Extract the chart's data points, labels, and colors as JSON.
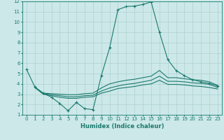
{
  "xlabel": "Humidex (Indice chaleur)",
  "bg_color": "#cce8e8",
  "grid_color": "#b0d0d0",
  "line_color": "#1a7a6e",
  "xlim": [
    -0.5,
    23.5
  ],
  "ylim": [
    1,
    12
  ],
  "xticks": [
    0,
    1,
    2,
    3,
    4,
    5,
    6,
    7,
    8,
    9,
    10,
    11,
    12,
    13,
    14,
    15,
    16,
    17,
    18,
    19,
    20,
    21,
    22,
    23
  ],
  "yticks": [
    1,
    2,
    3,
    4,
    5,
    6,
    7,
    8,
    9,
    10,
    11,
    12
  ],
  "curves": {
    "main": {
      "x": [
        0,
        1,
        2,
        3,
        4,
        5,
        6,
        7,
        8,
        9,
        10,
        11,
        12,
        13,
        14,
        15,
        16,
        17,
        18,
        19,
        20,
        21,
        22,
        23
      ],
      "y": [
        5.4,
        3.7,
        3.1,
        2.7,
        2.1,
        1.4,
        2.2,
        1.6,
        1.5,
        4.8,
        7.5,
        11.2,
        11.5,
        11.55,
        11.7,
        11.95,
        9.0,
        6.35,
        5.3,
        4.8,
        4.4,
        4.2,
        4.05,
        3.8
      ],
      "has_marker": true
    },
    "band1": {
      "x": [
        1,
        2,
        3,
        4,
        5,
        6,
        7,
        8,
        9,
        10,
        11,
        12,
        13,
        14,
        15,
        16,
        17,
        18,
        19,
        20,
        21,
        22,
        23
      ],
      "y": [
        3.65,
        3.1,
        3.05,
        3.0,
        2.95,
        2.95,
        3.05,
        3.1,
        3.6,
        4.0,
        4.2,
        4.35,
        4.45,
        4.6,
        4.75,
        5.3,
        4.6,
        4.6,
        4.5,
        4.4,
        4.35,
        4.2,
        3.85
      ],
      "has_marker": false
    },
    "band2": {
      "x": [
        1,
        2,
        3,
        4,
        5,
        6,
        7,
        8,
        9,
        10,
        11,
        12,
        13,
        14,
        15,
        16,
        17,
        18,
        19,
        20,
        21,
        22,
        23
      ],
      "y": [
        3.65,
        3.05,
        2.95,
        2.85,
        2.75,
        2.75,
        2.85,
        2.9,
        3.3,
        3.6,
        3.8,
        3.95,
        4.05,
        4.2,
        4.35,
        4.75,
        4.25,
        4.25,
        4.2,
        4.1,
        4.05,
        3.95,
        3.65
      ],
      "has_marker": false
    },
    "band3": {
      "x": [
        1,
        2,
        3,
        4,
        5,
        6,
        7,
        8,
        9,
        10,
        11,
        12,
        13,
        14,
        15,
        16,
        17,
        18,
        19,
        20,
        21,
        22,
        23
      ],
      "y": [
        3.65,
        3.0,
        2.85,
        2.7,
        2.6,
        2.6,
        2.7,
        2.75,
        3.1,
        3.3,
        3.55,
        3.65,
        3.75,
        3.9,
        4.0,
        4.35,
        3.95,
        3.95,
        3.9,
        3.8,
        3.75,
        3.65,
        3.5
      ],
      "has_marker": false
    }
  },
  "figsize": [
    3.2,
    2.0
  ],
  "dpi": 100
}
